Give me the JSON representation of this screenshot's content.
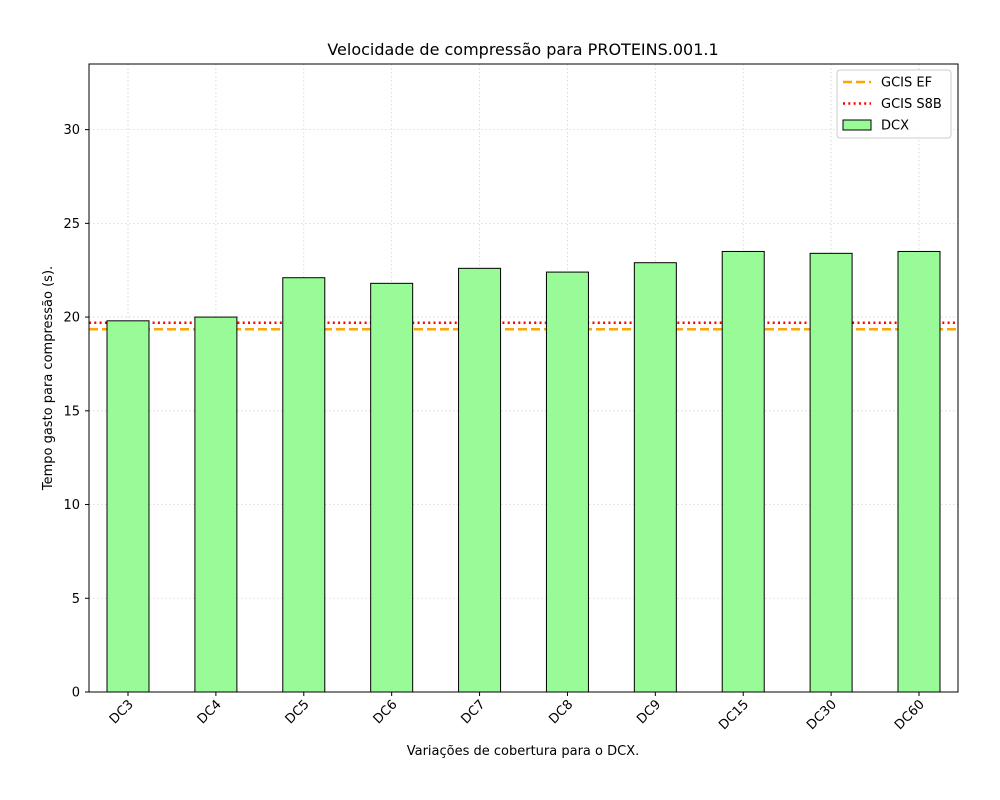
{
  "chart_data": {
    "type": "bar",
    "title": "Velocidade de compressão para  PROTEINS.001.1",
    "xlabel": "Variações de cobertura para o DCX.",
    "ylabel": "Tempo gasto para compressão (s).",
    "categories": [
      "DC3",
      "DC4",
      "DC5",
      "DC6",
      "DC7",
      "DC8",
      "DC9",
      "DC15",
      "DC30",
      "DC60"
    ],
    "series": [
      {
        "name": "DCX",
        "values": [
          19.8,
          20.0,
          22.1,
          21.8,
          22.6,
          22.4,
          22.9,
          23.5,
          23.4,
          23.5
        ],
        "color": "#98fb98"
      }
    ],
    "reference_lines": [
      {
        "name": "GCIS EF",
        "value": 19.35,
        "color": "#ffa500",
        "style": "dashed"
      },
      {
        "name": "GCIS S8B",
        "value": 19.7,
        "color": "#ff0000",
        "style": "dotted"
      }
    ],
    "ylim": [
      0,
      33.5
    ],
    "yticks": [
      0,
      5,
      10,
      15,
      20,
      25,
      30
    ],
    "grid": true,
    "legend_position": "top-right"
  }
}
